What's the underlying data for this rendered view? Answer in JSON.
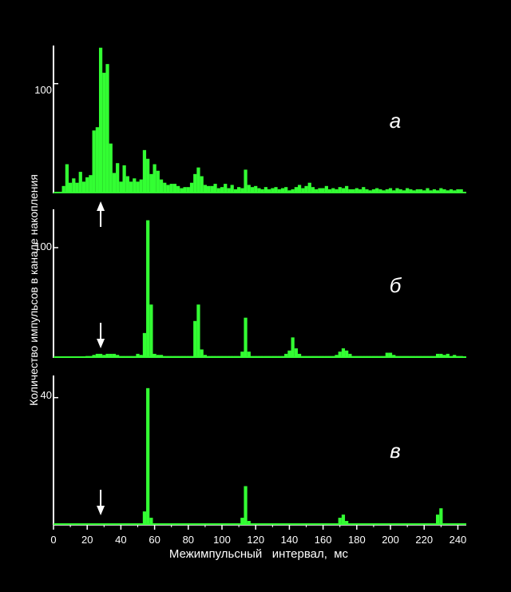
{
  "chart_data": {
    "type": "bar",
    "xlabel": "Межимпульсный   интервал,  мс",
    "ylabel": "Количество   импульсов   в   канале   накопления",
    "xlim": [
      0,
      245
    ],
    "x_ticks": [
      0,
      20,
      40,
      60,
      80,
      100,
      120,
      140,
      160,
      180,
      200,
      220,
      240
    ],
    "bar_color": "#33ff33",
    "axis_color": "#ffffff",
    "background": "#000000",
    "bin_width_ms": 2,
    "panels": [
      {
        "letter": "а",
        "ylim": [
          0,
          135
        ],
        "y_tick": 100,
        "arrow": {
          "x": 28,
          "direction": "up"
        },
        "series": [
          {
            "x": 6,
            "v": 6
          },
          {
            "x": 8,
            "v": 26
          },
          {
            "x": 10,
            "v": 9
          },
          {
            "x": 12,
            "v": 13
          },
          {
            "x": 14,
            "v": 9
          },
          {
            "x": 16,
            "v": 19
          },
          {
            "x": 18,
            "v": 10
          },
          {
            "x": 20,
            "v": 14
          },
          {
            "x": 22,
            "v": 16
          },
          {
            "x": 24,
            "v": 57
          },
          {
            "x": 26,
            "v": 60
          },
          {
            "x": 28,
            "v": 133
          },
          {
            "x": 30,
            "v": 110
          },
          {
            "x": 32,
            "v": 118
          },
          {
            "x": 34,
            "v": 45
          },
          {
            "x": 36,
            "v": 18
          },
          {
            "x": 38,
            "v": 27
          },
          {
            "x": 40,
            "v": 10
          },
          {
            "x": 42,
            "v": 25
          },
          {
            "x": 44,
            "v": 15
          },
          {
            "x": 46,
            "v": 10
          },
          {
            "x": 48,
            "v": 13
          },
          {
            "x": 50,
            "v": 10
          },
          {
            "x": 52,
            "v": 12
          },
          {
            "x": 54,
            "v": 39
          },
          {
            "x": 56,
            "v": 31
          },
          {
            "x": 58,
            "v": 17
          },
          {
            "x": 60,
            "v": 26
          },
          {
            "x": 62,
            "v": 20
          },
          {
            "x": 64,
            "v": 12
          },
          {
            "x": 66,
            "v": 9
          },
          {
            "x": 68,
            "v": 7
          },
          {
            "x": 70,
            "v": 8
          },
          {
            "x": 72,
            "v": 8
          },
          {
            "x": 74,
            "v": 6
          },
          {
            "x": 76,
            "v": 4
          },
          {
            "x": 78,
            "v": 5
          },
          {
            "x": 80,
            "v": 5
          },
          {
            "x": 82,
            "v": 9
          },
          {
            "x": 84,
            "v": 17
          },
          {
            "x": 86,
            "v": 23
          },
          {
            "x": 88,
            "v": 15
          },
          {
            "x": 90,
            "v": 7
          },
          {
            "x": 92,
            "v": 6
          },
          {
            "x": 94,
            "v": 6
          },
          {
            "x": 96,
            "v": 8
          },
          {
            "x": 98,
            "v": 4
          },
          {
            "x": 100,
            "v": 5
          },
          {
            "x": 102,
            "v": 8
          },
          {
            "x": 104,
            "v": 4
          },
          {
            "x": 106,
            "v": 7
          },
          {
            "x": 108,
            "v": 3
          },
          {
            "x": 110,
            "v": 5
          },
          {
            "x": 112,
            "v": 4
          },
          {
            "x": 114,
            "v": 21
          },
          {
            "x": 116,
            "v": 7
          },
          {
            "x": 118,
            "v": 5
          },
          {
            "x": 120,
            "v": 6
          },
          {
            "x": 122,
            "v": 4
          },
          {
            "x": 124,
            "v": 3
          },
          {
            "x": 126,
            "v": 5
          },
          {
            "x": 128,
            "v": 3
          },
          {
            "x": 130,
            "v": 4
          },
          {
            "x": 132,
            "v": 5
          },
          {
            "x": 134,
            "v": 3
          },
          {
            "x": 136,
            "v": 4
          },
          {
            "x": 138,
            "v": 5
          },
          {
            "x": 140,
            "v": 2
          },
          {
            "x": 142,
            "v": 3
          },
          {
            "x": 144,
            "v": 5
          },
          {
            "x": 146,
            "v": 7
          },
          {
            "x": 148,
            "v": 4
          },
          {
            "x": 150,
            "v": 6
          },
          {
            "x": 152,
            "v": 9
          },
          {
            "x": 154,
            "v": 5
          },
          {
            "x": 156,
            "v": 3
          },
          {
            "x": 158,
            "v": 4
          },
          {
            "x": 160,
            "v": 4
          },
          {
            "x": 162,
            "v": 6
          },
          {
            "x": 164,
            "v": 3
          },
          {
            "x": 166,
            "v": 4
          },
          {
            "x": 168,
            "v": 3
          },
          {
            "x": 170,
            "v": 5
          },
          {
            "x": 172,
            "v": 4
          },
          {
            "x": 174,
            "v": 6
          },
          {
            "x": 176,
            "v": 3
          },
          {
            "x": 178,
            "v": 3
          },
          {
            "x": 180,
            "v": 4
          },
          {
            "x": 182,
            "v": 3
          },
          {
            "x": 184,
            "v": 5
          },
          {
            "x": 186,
            "v": 3
          },
          {
            "x": 188,
            "v": 2
          },
          {
            "x": 190,
            "v": 3
          },
          {
            "x": 192,
            "v": 4
          },
          {
            "x": 194,
            "v": 3
          },
          {
            "x": 196,
            "v": 2
          },
          {
            "x": 198,
            "v": 3
          },
          {
            "x": 200,
            "v": 4
          },
          {
            "x": 202,
            "v": 2
          },
          {
            "x": 204,
            "v": 4
          },
          {
            "x": 206,
            "v": 3
          },
          {
            "x": 208,
            "v": 2
          },
          {
            "x": 210,
            "v": 4
          },
          {
            "x": 212,
            "v": 3
          },
          {
            "x": 214,
            "v": 2
          },
          {
            "x": 216,
            "v": 3
          },
          {
            "x": 218,
            "v": 3
          },
          {
            "x": 220,
            "v": 2
          },
          {
            "x": 222,
            "v": 4
          },
          {
            "x": 224,
            "v": 2
          },
          {
            "x": 226,
            "v": 3
          },
          {
            "x": 228,
            "v": 2
          },
          {
            "x": 230,
            "v": 4
          },
          {
            "x": 232,
            "v": 3
          },
          {
            "x": 234,
            "v": 2
          },
          {
            "x": 236,
            "v": 3
          },
          {
            "x": 238,
            "v": 2
          },
          {
            "x": 240,
            "v": 3
          },
          {
            "x": 242,
            "v": 3
          }
        ]
      },
      {
        "letter": "б",
        "ylim": [
          0,
          135
        ],
        "y_tick": 100,
        "arrow": {
          "x": 28,
          "direction": "down"
        },
        "series": [
          {
            "x": 20,
            "v": 1
          },
          {
            "x": 22,
            "v": 1
          },
          {
            "x": 24,
            "v": 2
          },
          {
            "x": 26,
            "v": 3
          },
          {
            "x": 28,
            "v": 3
          },
          {
            "x": 30,
            "v": 2
          },
          {
            "x": 32,
            "v": 3
          },
          {
            "x": 34,
            "v": 3
          },
          {
            "x": 36,
            "v": 3
          },
          {
            "x": 38,
            "v": 2
          },
          {
            "x": 40,
            "v": 1
          },
          {
            "x": 42,
            "v": 1
          },
          {
            "x": 44,
            "v": 1
          },
          {
            "x": 46,
            "v": 1
          },
          {
            "x": 48,
            "v": 1
          },
          {
            "x": 50,
            "v": 3
          },
          {
            "x": 52,
            "v": 2
          },
          {
            "x": 54,
            "v": 22
          },
          {
            "x": 56,
            "v": 125
          },
          {
            "x": 58,
            "v": 48
          },
          {
            "x": 60,
            "v": 3
          },
          {
            "x": 62,
            "v": 2
          },
          {
            "x": 64,
            "v": 2
          },
          {
            "x": 66,
            "v": 1
          },
          {
            "x": 68,
            "v": 1
          },
          {
            "x": 70,
            "v": 1
          },
          {
            "x": 72,
            "v": 1
          },
          {
            "x": 74,
            "v": 1
          },
          {
            "x": 76,
            "v": 1
          },
          {
            "x": 78,
            "v": 1
          },
          {
            "x": 80,
            "v": 1
          },
          {
            "x": 82,
            "v": 1
          },
          {
            "x": 84,
            "v": 33
          },
          {
            "x": 86,
            "v": 48
          },
          {
            "x": 88,
            "v": 7
          },
          {
            "x": 90,
            "v": 2
          },
          {
            "x": 92,
            "v": 1
          },
          {
            "x": 94,
            "v": 1
          },
          {
            "x": 96,
            "v": 1
          },
          {
            "x": 98,
            "v": 1
          },
          {
            "x": 100,
            "v": 1
          },
          {
            "x": 102,
            "v": 1
          },
          {
            "x": 104,
            "v": 1
          },
          {
            "x": 106,
            "v": 1
          },
          {
            "x": 108,
            "v": 1
          },
          {
            "x": 110,
            "v": 1
          },
          {
            "x": 112,
            "v": 5
          },
          {
            "x": 114,
            "v": 36
          },
          {
            "x": 116,
            "v": 5
          },
          {
            "x": 118,
            "v": 1
          },
          {
            "x": 120,
            "v": 1
          },
          {
            "x": 122,
            "v": 1
          },
          {
            "x": 124,
            "v": 1
          },
          {
            "x": 126,
            "v": 1
          },
          {
            "x": 128,
            "v": 1
          },
          {
            "x": 130,
            "v": 1
          },
          {
            "x": 132,
            "v": 1
          },
          {
            "x": 134,
            "v": 1
          },
          {
            "x": 136,
            "v": 1
          },
          {
            "x": 138,
            "v": 3
          },
          {
            "x": 140,
            "v": 6
          },
          {
            "x": 142,
            "v": 18
          },
          {
            "x": 144,
            "v": 8
          },
          {
            "x": 146,
            "v": 3
          },
          {
            "x": 148,
            "v": 1
          },
          {
            "x": 150,
            "v": 1
          },
          {
            "x": 152,
            "v": 1
          },
          {
            "x": 154,
            "v": 1
          },
          {
            "x": 156,
            "v": 1
          },
          {
            "x": 158,
            "v": 1
          },
          {
            "x": 160,
            "v": 1
          },
          {
            "x": 162,
            "v": 1
          },
          {
            "x": 164,
            "v": 1
          },
          {
            "x": 166,
            "v": 1
          },
          {
            "x": 168,
            "v": 2
          },
          {
            "x": 170,
            "v": 5
          },
          {
            "x": 172,
            "v": 8
          },
          {
            "x": 174,
            "v": 6
          },
          {
            "x": 176,
            "v": 3
          },
          {
            "x": 178,
            "v": 1
          },
          {
            "x": 180,
            "v": 1
          },
          {
            "x": 182,
            "v": 1
          },
          {
            "x": 184,
            "v": 1
          },
          {
            "x": 186,
            "v": 1
          },
          {
            "x": 188,
            "v": 1
          },
          {
            "x": 190,
            "v": 1
          },
          {
            "x": 192,
            "v": 1
          },
          {
            "x": 194,
            "v": 1
          },
          {
            "x": 196,
            "v": 1
          },
          {
            "x": 198,
            "v": 4
          },
          {
            "x": 200,
            "v": 4
          },
          {
            "x": 202,
            "v": 2
          },
          {
            "x": 204,
            "v": 1
          },
          {
            "x": 206,
            "v": 1
          },
          {
            "x": 208,
            "v": 1
          },
          {
            "x": 210,
            "v": 1
          },
          {
            "x": 212,
            "v": 1
          },
          {
            "x": 214,
            "v": 1
          },
          {
            "x": 216,
            "v": 1
          },
          {
            "x": 218,
            "v": 1
          },
          {
            "x": 220,
            "v": 1
          },
          {
            "x": 222,
            "v": 1
          },
          {
            "x": 224,
            "v": 1
          },
          {
            "x": 226,
            "v": 1
          },
          {
            "x": 228,
            "v": 3
          },
          {
            "x": 230,
            "v": 3
          },
          {
            "x": 232,
            "v": 2
          },
          {
            "x": 234,
            "v": 3
          },
          {
            "x": 236,
            "v": 1
          },
          {
            "x": 238,
            "v": 2
          },
          {
            "x": 240,
            "v": 1
          },
          {
            "x": 242,
            "v": 1
          }
        ]
      },
      {
        "letter": "в",
        "ylim": [
          0,
          47
        ],
        "y_tick": 40,
        "arrow": {
          "x": 28,
          "direction": "down"
        },
        "series": [
          {
            "x": 54,
            "v": 4
          },
          {
            "x": 56,
            "v": 43
          },
          {
            "x": 58,
            "v": 2
          },
          {
            "x": 112,
            "v": 2
          },
          {
            "x": 114,
            "v": 12
          },
          {
            "x": 116,
            "v": 1
          },
          {
            "x": 170,
            "v": 2
          },
          {
            "x": 172,
            "v": 3
          },
          {
            "x": 174,
            "v": 1
          },
          {
            "x": 228,
            "v": 3
          },
          {
            "x": 230,
            "v": 5
          }
        ]
      }
    ]
  }
}
